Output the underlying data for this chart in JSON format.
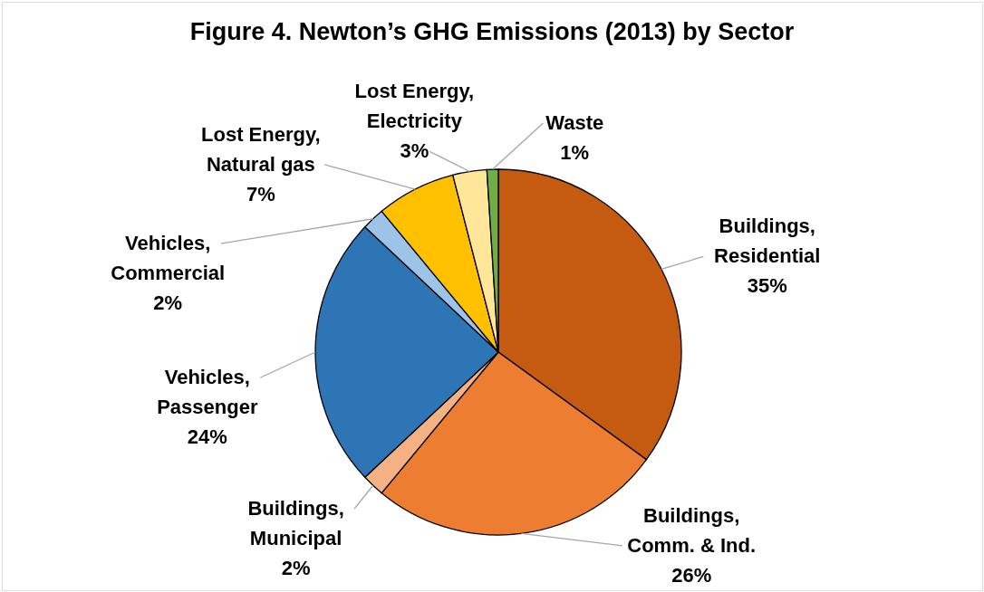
{
  "chart_data": {
    "type": "pie",
    "title": "Figure 4. Newton’s GHG Emissions (2013) by Sector",
    "categories": [
      "Buildings, Residential",
      "Buildings, Comm. & Ind.",
      "Buildings, Municipal",
      "Vehicles, Passenger",
      "Vehicles, Commercial",
      "Lost Energy, Natural gas",
      "Lost Energy, Electricity",
      "Waste"
    ],
    "values": [
      35,
      26,
      2,
      24,
      2,
      7,
      3,
      1
    ],
    "colors": [
      "#c55a11",
      "#ed7d31",
      "#f4b183",
      "#2e75b6",
      "#9dc3e6",
      "#ffc000",
      "#ffe699",
      "#70ad47"
    ],
    "value_labels": [
      "35%",
      "26%",
      "2%",
      "24%",
      "2%",
      "7%",
      "3%",
      "1%"
    ]
  }
}
